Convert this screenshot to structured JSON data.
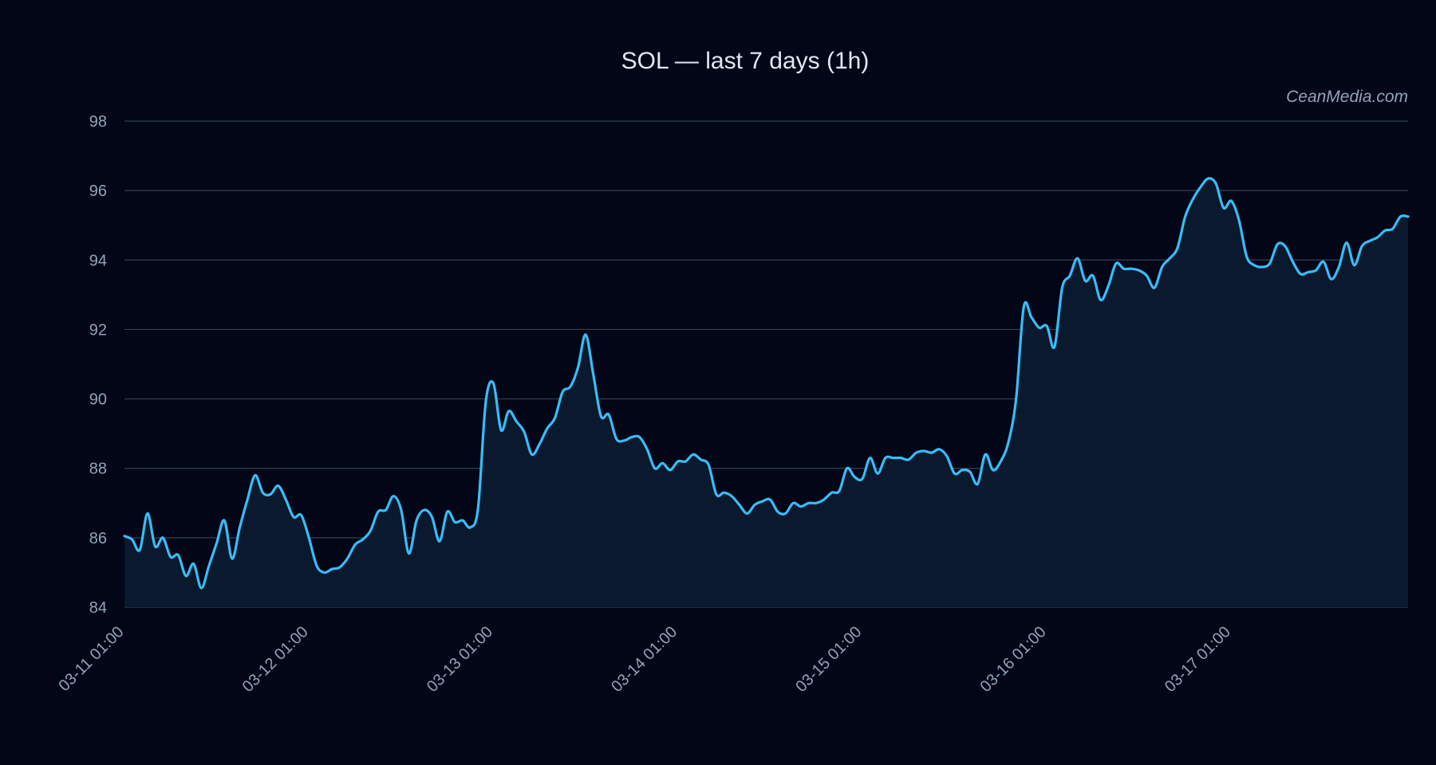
{
  "colors": {
    "background": "#020617",
    "line": "#38bdf8",
    "area": "#0b1a2e",
    "grid": "#334155",
    "text": "#e2e8f0",
    "muted": "#94a3b8"
  },
  "watermark": "CeanMedia.com",
  "chart_data": {
    "type": "area",
    "title": "SOL — last 7 days (1h)",
    "xlabel": "",
    "ylabel": "",
    "ylim": [
      84,
      98
    ],
    "yticks": [
      84,
      86,
      88,
      90,
      92,
      94,
      96,
      98
    ],
    "grid": true,
    "x_start": "03-11 01:00",
    "x_interval": "1h",
    "xticks": [
      {
        "index": 0,
        "label": "03-11 01:00"
      },
      {
        "index": 24,
        "label": "03-12 01:00"
      },
      {
        "index": 48,
        "label": "03-13 01:00"
      },
      {
        "index": 72,
        "label": "03-14 01:00"
      },
      {
        "index": 96,
        "label": "03-15 01:00"
      },
      {
        "index": 120,
        "label": "03-16 01:00"
      },
      {
        "index": 144,
        "label": "03-17 01:00"
      }
    ],
    "values": [
      86.05,
      85.95,
      85.65,
      86.7,
      85.75,
      86.0,
      85.45,
      85.5,
      84.9,
      85.25,
      84.55,
      85.2,
      85.85,
      86.5,
      85.4,
      86.3,
      87.1,
      87.8,
      87.3,
      87.25,
      87.5,
      87.1,
      86.6,
      86.65,
      86.0,
      85.2,
      85.0,
      85.1,
      85.15,
      85.4,
      85.8,
      85.95,
      86.2,
      86.75,
      86.8,
      87.2,
      86.8,
      85.55,
      86.5,
      86.8,
      86.6,
      85.9,
      86.75,
      86.45,
      86.5,
      86.3,
      86.85,
      89.9,
      90.45,
      89.1,
      89.65,
      89.35,
      89.05,
      88.4,
      88.7,
      89.15,
      89.45,
      90.2,
      90.35,
      90.9,
      91.85,
      90.7,
      89.5,
      89.55,
      88.85,
      88.8,
      88.9,
      88.9,
      88.55,
      88.0,
      88.15,
      87.95,
      88.2,
      88.2,
      88.4,
      88.25,
      88.1,
      87.25,
      87.3,
      87.2,
      86.95,
      86.7,
      86.95,
      87.05,
      87.1,
      86.75,
      86.7,
      87.0,
      86.9,
      87.0,
      87.0,
      87.1,
      87.3,
      87.35,
      88.0,
      87.75,
      87.7,
      88.3,
      87.85,
      88.3,
      88.3,
      88.3,
      88.25,
      88.45,
      88.5,
      88.45,
      88.55,
      88.35,
      87.85,
      87.95,
      87.9,
      87.55,
      88.4,
      87.95,
      88.2,
      88.75,
      90.0,
      92.65,
      92.35,
      92.05,
      92.1,
      91.5,
      93.2,
      93.55,
      94.05,
      93.4,
      93.55,
      92.85,
      93.25,
      93.9,
      93.75,
      93.75,
      93.7,
      93.55,
      93.2,
      93.8,
      94.05,
      94.35,
      95.25,
      95.75,
      96.1,
      96.35,
      96.2,
      95.5,
      95.7,
      95.15,
      94.1,
      93.85,
      93.8,
      93.9,
      94.45,
      94.4,
      93.95,
      93.6,
      93.65,
      93.7,
      93.95,
      93.45,
      93.8,
      94.5,
      93.85,
      94.4,
      94.55,
      94.65,
      94.85,
      94.9,
      95.25,
      95.25
    ]
  }
}
